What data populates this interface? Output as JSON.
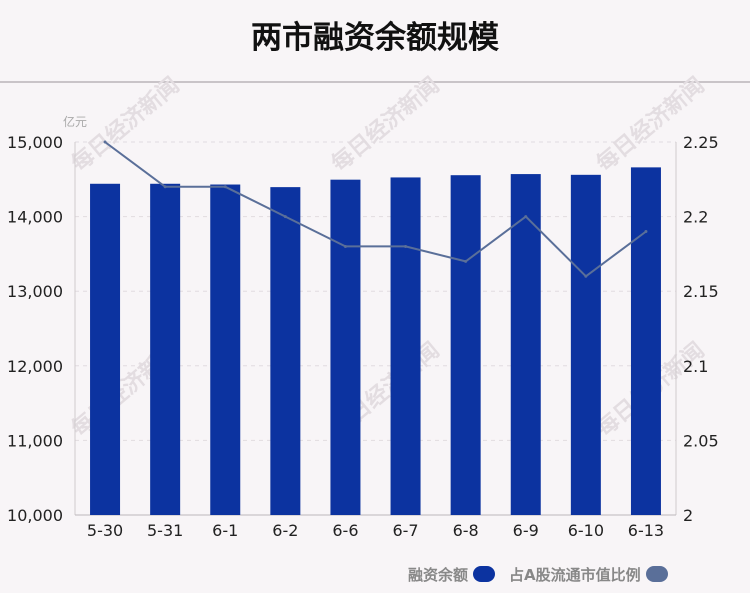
{
  "page": {
    "title": "两市融资余额规模"
  },
  "colors": {
    "bar": "#0c33a0",
    "line": "#5a6f99",
    "grid": "#e1dce0",
    "axis": "#cfcacd",
    "text": "#222222",
    "unit": "#aaaaaa"
  },
  "watermark": "每日经济新闻",
  "chart_data": {
    "type": "bar",
    "title": "两市融资余额规模",
    "y_unit_label": "亿元",
    "categories": [
      "5-30",
      "5-31",
      "6-1",
      "6-2",
      "6-6",
      "6-7",
      "6-8",
      "6-9",
      "6-10",
      "6-13"
    ],
    "ylim": [
      10000,
      15000
    ],
    "y_ticks": [
      "10,000",
      "11,000",
      "12,000",
      "13,000",
      "14,000",
      "15,000"
    ],
    "y2lim": [
      2,
      2.25
    ],
    "y2_ticks": [
      "2",
      "2.05",
      "2.1",
      "2.15",
      "2.2",
      "2.25"
    ],
    "grid": true,
    "legend_position": "bottom-right",
    "series": [
      {
        "name": "融资余额",
        "type": "bar",
        "axis": "left",
        "values": [
          14440,
          14440,
          14430,
          14395,
          14495,
          14525,
          14555,
          14570,
          14560,
          14660
        ]
      },
      {
        "name": "占A股流通市值比例",
        "type": "line",
        "axis": "right",
        "values": [
          2.25,
          2.22,
          2.22,
          2.2,
          2.18,
          2.18,
          2.17,
          2.2,
          2.16,
          2.19
        ]
      }
    ]
  }
}
